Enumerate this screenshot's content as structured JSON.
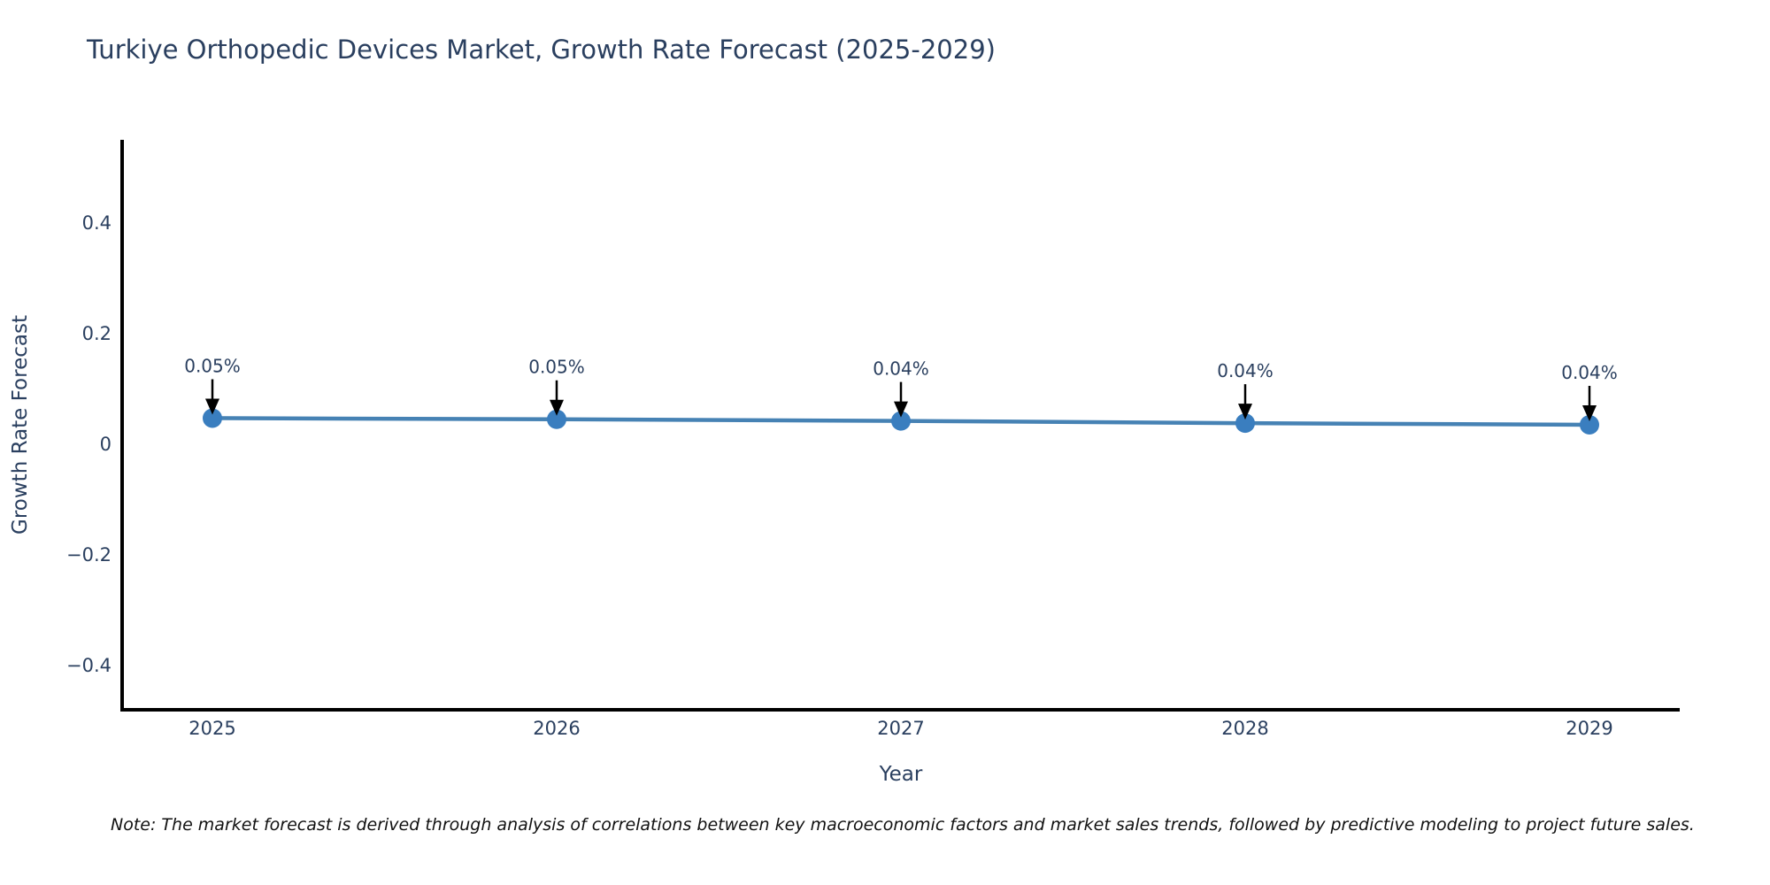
{
  "title": "Turkiye Orthopedic Devices Market, Growth Rate Forecast (2025-2029)",
  "note": "Note: The market forecast is derived through analysis of correlations between key macroeconomic factors and market sales trends, followed by predictive modeling to project future sales.",
  "chart_data": {
    "type": "line",
    "x": [
      2025,
      2026,
      2027,
      2028,
      2029
    ],
    "values": [
      0.047,
      0.045,
      0.042,
      0.038,
      0.035
    ],
    "point_labels": [
      "0.05%",
      "0.05%",
      "0.04%",
      "0.04%",
      "0.04%"
    ],
    "title": "Turkiye Orthopedic Devices Market, Growth Rate Forecast (2025-2029)",
    "xlabel": "Year",
    "ylabel": "Growth Rate Forecast",
    "ylim": [
      -0.48,
      0.55
    ],
    "yticks": [
      0.4,
      0.2,
      0,
      -0.2,
      -0.4
    ],
    "ytick_labels": [
      "0.4",
      "0.2",
      "0",
      "−0.2",
      "−0.4"
    ],
    "xtick_labels": [
      "2025",
      "2026",
      "2027",
      "2028",
      "2029"
    ],
    "grid": false,
    "legend": "none",
    "colors": {
      "line": "#4682b4",
      "marker": "#3a7ebf",
      "axis": "#000000",
      "tick_text": "#2a3f5f",
      "title_text": "#2a3f5f",
      "annotation_text": "#2a3f5f",
      "arrow": "#000000",
      "note_text": "#111111"
    }
  }
}
